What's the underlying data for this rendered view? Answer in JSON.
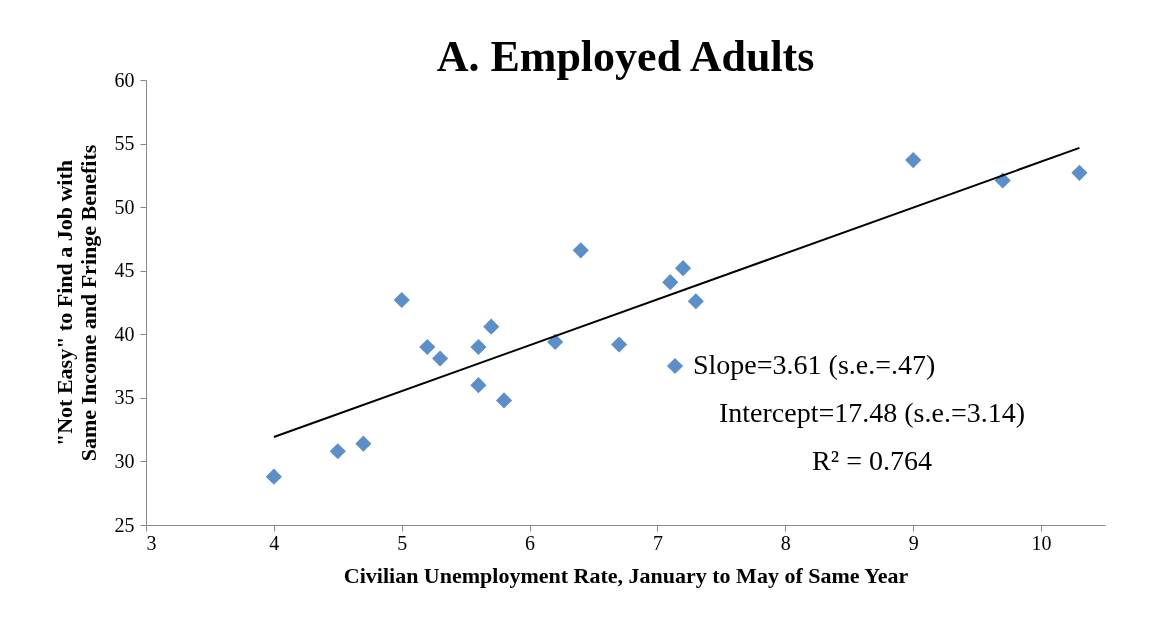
{
  "chart_data": {
    "type": "scatter",
    "title": "A. Employed Adults",
    "xlabel": "Civilian Unemployment Rate, January to May of Same Year",
    "ylabel": "\"Not Easy\" to Find a Job with\nSame Income and Fringe Benefits",
    "xlim": [
      3,
      10.5
    ],
    "xticks": [
      3,
      4,
      5,
      6,
      7,
      8,
      9,
      10
    ],
    "ylim": [
      25,
      60
    ],
    "yticks": [
      25,
      30,
      35,
      40,
      45,
      50,
      55,
      60
    ],
    "grid": false,
    "legend": "right",
    "series": [
      {
        "name": "Slope=3.61 (s.e.=.47)",
        "marker": "diamond",
        "color": "#5b8fc9",
        "x": [
          4,
          4.5,
          4.7,
          5.0,
          5.2,
          5.3,
          5.6,
          5.6,
          5.7,
          5.8,
          6.2,
          6.4,
          6.7,
          7.1,
          7.2,
          7.3,
          9.0,
          9.7,
          10.3
        ],
        "values": [
          28.8,
          30.8,
          31.4,
          42.7,
          39.0,
          38.1,
          39.0,
          36.0,
          40.6,
          34.8,
          39.4,
          46.6,
          39.2,
          44.1,
          45.2,
          42.6,
          53.7,
          52.1,
          52.7
        ]
      },
      {
        "type": "line",
        "line_style": "solid",
        "color": "#000000",
        "x": [
          4,
          10.3
        ],
        "values": [
          31.92,
          54.66
        ]
      }
    ],
    "annotations": [
      "Intercept=17.48 (s.e.=3.14)",
      "R² = 0.764"
    ]
  }
}
